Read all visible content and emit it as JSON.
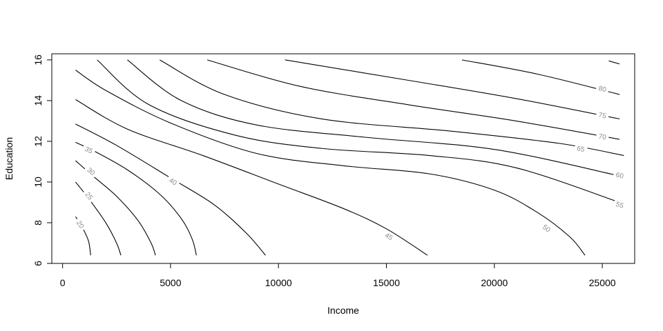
{
  "chart_data": {
    "type": "contour",
    "xlabel": "Income",
    "ylabel": "Education",
    "xlim": [
      -500,
      26500
    ],
    "ylim": [
      6,
      16.3
    ],
    "xticks": [
      0,
      5000,
      10000,
      15000,
      20000,
      25000
    ],
    "xtick_labels": [
      "0",
      "5000",
      "10000",
      "15000",
      "20000",
      "25000"
    ],
    "yticks": [
      6,
      8,
      10,
      12,
      14,
      16
    ],
    "ytick_labels": [
      "6",
      "8",
      "10",
      "12",
      "14",
      "16"
    ],
    "colors": {
      "line": "#000000",
      "label": "#8c8c8c",
      "frame": "#000000"
    },
    "contours": [
      {
        "level": "20",
        "points": [
          [
            600,
            8.3
          ],
          [
            900,
            7.8
          ],
          [
            1200,
            7.1
          ],
          [
            1300,
            6.4
          ]
        ],
        "label_at": [
          800,
          7.9
        ]
      },
      {
        "level": "25",
        "points": [
          [
            600,
            10.0
          ],
          [
            1200,
            9.2
          ],
          [
            2000,
            8.0
          ],
          [
            2500,
            7.0
          ],
          [
            2700,
            6.4
          ]
        ],
        "label_at": [
          1200,
          9.3
        ]
      },
      {
        "level": "30",
        "points": [
          [
            600,
            11.05
          ],
          [
            1400,
            10.3
          ],
          [
            2500,
            9.3
          ],
          [
            3500,
            8.1
          ],
          [
            4100,
            7.0
          ],
          [
            4300,
            6.4
          ]
        ],
        "label_at": [
          1300,
          10.5
        ]
      },
      {
        "level": "35",
        "points": [
          [
            600,
            11.95
          ],
          [
            1500,
            11.5
          ],
          [
            3000,
            10.6
          ],
          [
            4500,
            9.4
          ],
          [
            5500,
            8.2
          ],
          [
            6000,
            7.2
          ],
          [
            6200,
            6.4
          ]
        ],
        "label_at": [
          1200,
          11.55
        ]
      },
      {
        "level": "40",
        "points": [
          [
            600,
            12.85
          ],
          [
            2500,
            11.8
          ],
          [
            5000,
            10.2
          ],
          [
            7000,
            8.9
          ],
          [
            8500,
            7.5
          ],
          [
            9400,
            6.4
          ]
        ],
        "label_at": [
          5100,
          10.0
        ]
      },
      {
        "level": "45",
        "points": [
          [
            600,
            14.05
          ],
          [
            3000,
            12.6
          ],
          [
            6500,
            11.3
          ],
          [
            10000,
            9.9
          ],
          [
            13000,
            8.7
          ],
          [
            15000,
            7.7
          ],
          [
            16900,
            6.4
          ]
        ],
        "label_at": [
          15100,
          7.3
        ]
      },
      {
        "level": "50",
        "points": [
          [
            600,
            15.5
          ],
          [
            2000,
            14.5
          ],
          [
            5000,
            12.9
          ],
          [
            9000,
            11.4
          ],
          [
            13000,
            10.8
          ],
          [
            17000,
            10.4
          ],
          [
            20000,
            9.6
          ],
          [
            22000,
            8.5
          ],
          [
            23500,
            7.3
          ],
          [
            24200,
            6.4
          ]
        ],
        "label_at": [
          22400,
          7.7
        ]
      },
      {
        "level": "55",
        "points": [
          [
            1600,
            16.0
          ],
          [
            4000,
            13.8
          ],
          [
            8000,
            12.3
          ],
          [
            12000,
            11.65
          ],
          [
            17000,
            11.3
          ],
          [
            21000,
            10.7
          ],
          [
            25800,
            9.0
          ]
        ],
        "label_at": [
          25800,
          8.85
        ]
      },
      {
        "level": "60",
        "points": [
          [
            3000,
            16.0
          ],
          [
            5500,
            14.0
          ],
          [
            9000,
            12.8
          ],
          [
            14000,
            12.2
          ],
          [
            20000,
            11.6
          ],
          [
            25800,
            10.3
          ]
        ],
        "label_at": [
          25800,
          10.3
        ]
      },
      {
        "level": "65",
        "points": [
          [
            4500,
            16.0
          ],
          [
            7500,
            14.3
          ],
          [
            12000,
            13.1
          ],
          [
            18000,
            12.5
          ],
          [
            23000,
            11.9
          ],
          [
            26000,
            11.3
          ]
        ],
        "label_at": [
          24000,
          11.6
        ]
      },
      {
        "level": "70",
        "points": [
          [
            6700,
            16.0
          ],
          [
            11000,
            14.7
          ],
          [
            16000,
            13.8
          ],
          [
            21000,
            13.0
          ],
          [
            25800,
            12.1
          ]
        ],
        "label_at": [
          25000,
          12.2
        ]
      },
      {
        "level": "75",
        "points": [
          [
            10300,
            16.0
          ],
          [
            16000,
            15.0
          ],
          [
            21000,
            14.1
          ],
          [
            25800,
            13.1
          ]
        ],
        "label_at": [
          25000,
          13.25
        ]
      },
      {
        "level": "80",
        "points": [
          [
            18500,
            16.0
          ],
          [
            22000,
            15.3
          ],
          [
            25800,
            14.3
          ]
        ],
        "label_at": [
          25000,
          14.55
        ]
      },
      {
        "level": "",
        "points": [
          [
            25300,
            15.95
          ],
          [
            25800,
            15.8
          ]
        ],
        "label_at": null
      }
    ]
  }
}
